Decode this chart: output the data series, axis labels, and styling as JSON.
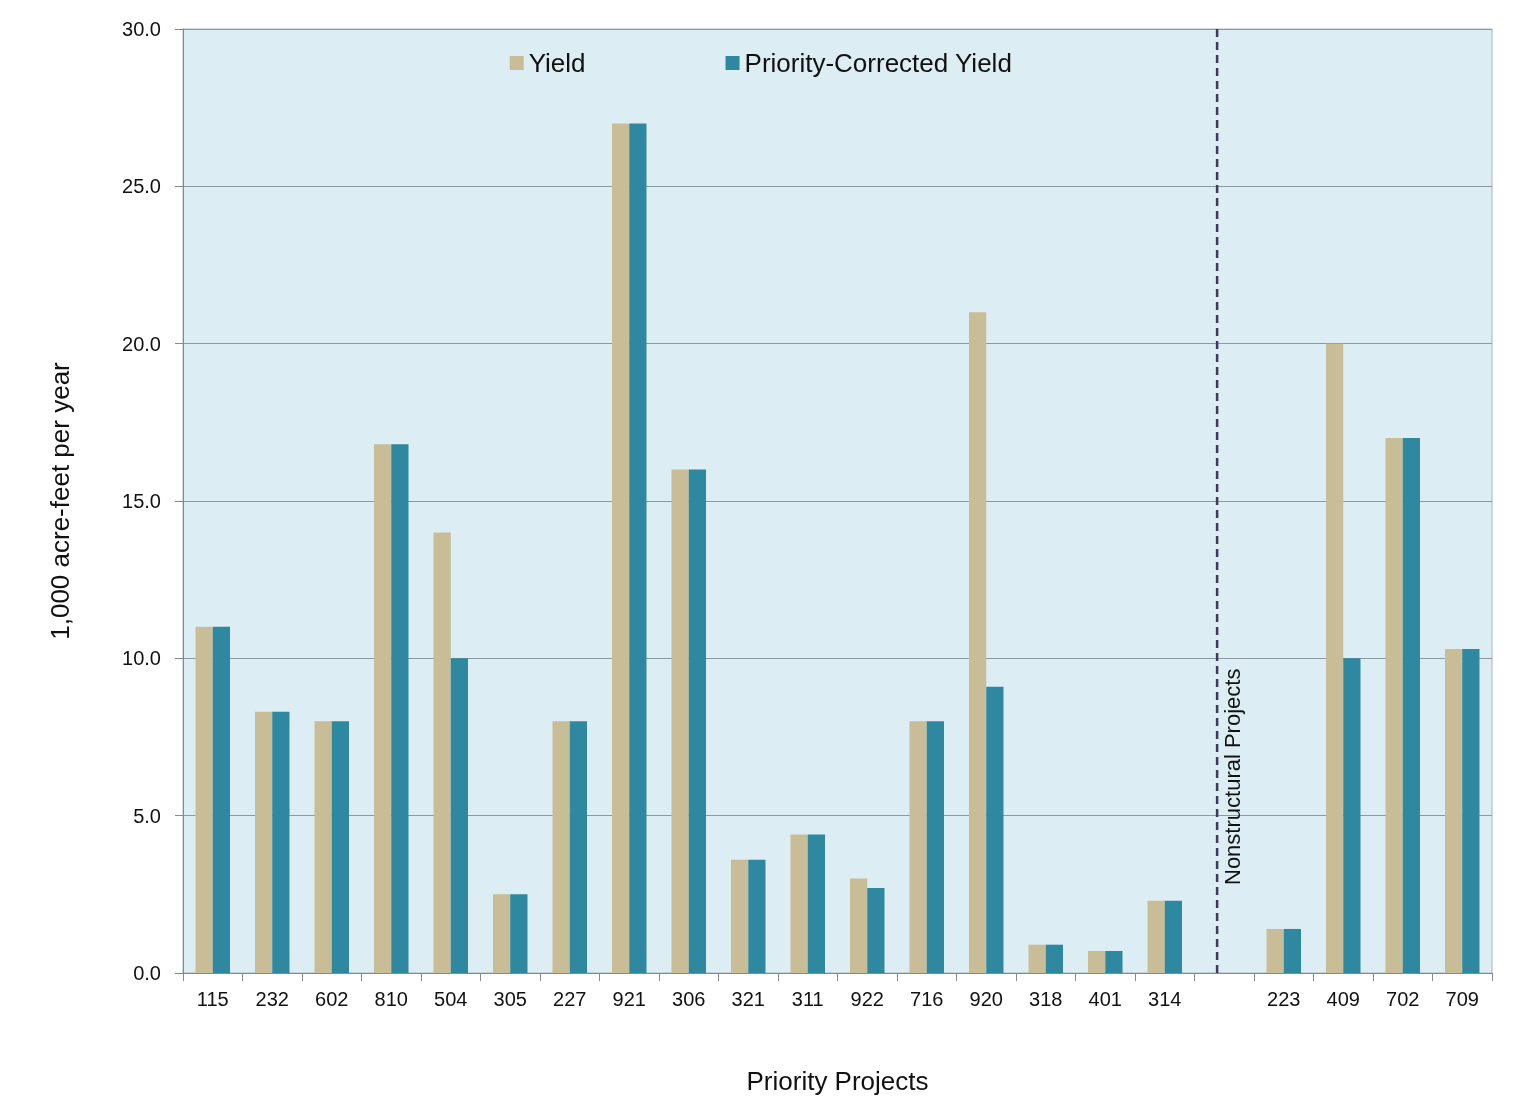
{
  "chart_data": {
    "type": "bar",
    "xlabel": "Priority Projects",
    "ylabel": "1,000 acre-feet per year",
    "categories": [
      "115",
      "232",
      "602",
      "810",
      "504",
      "305",
      "227",
      "921",
      "306",
      "321",
      "311",
      "922",
      "716",
      "920",
      "318",
      "401",
      "314",
      null,
      "223",
      "409",
      "702",
      "709"
    ],
    "series": [
      {
        "name": "Yield",
        "color": "#c9bd97",
        "values": [
          11.0,
          8.3,
          8.0,
          16.8,
          14.0,
          2.5,
          8.0,
          27.0,
          16.0,
          3.6,
          4.4,
          3.0,
          8.0,
          21.0,
          0.9,
          0.7,
          2.3,
          null,
          1.4,
          20.0,
          17.0,
          10.3
        ]
      },
      {
        "name": "Priority-Corrected Yield",
        "color": "#2e88a0",
        "values": [
          11.0,
          8.3,
          8.0,
          16.8,
          10.0,
          2.5,
          8.0,
          27.0,
          16.0,
          3.6,
          4.4,
          2.7,
          8.0,
          9.1,
          0.9,
          0.7,
          2.3,
          null,
          1.4,
          10.0,
          17.0,
          10.3
        ]
      }
    ],
    "ylim": [
      0,
      30
    ],
    "yticks": [
      {
        "value": 0,
        "label": "0.0"
      },
      {
        "value": 5,
        "label": "5.0"
      },
      {
        "value": 10,
        "label": "10.0"
      },
      {
        "value": 15,
        "label": "15.0"
      },
      {
        "value": 20,
        "label": "20.0"
      },
      {
        "value": 25,
        "label": "25.0"
      },
      {
        "value": 30,
        "label": "30.0"
      }
    ],
    "grid": "y",
    "legend": "top",
    "annotations": [
      "Nonstructural Projects"
    ]
  }
}
